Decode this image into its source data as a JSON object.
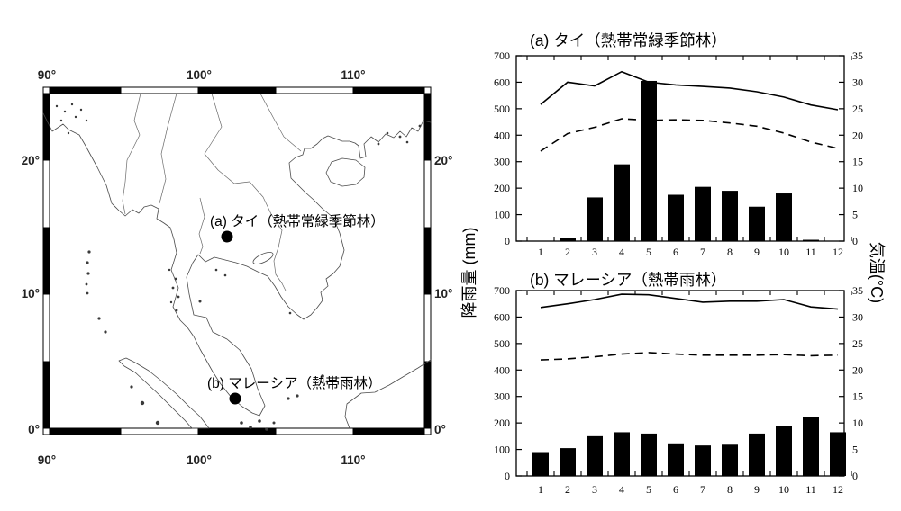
{
  "map": {
    "lon_ticks_top": [
      "90°",
      "100°",
      "110°"
    ],
    "lon_ticks_bottom": [
      "90°",
      "100°",
      "110°"
    ],
    "lat_ticks_left": [
      "20°",
      "10°",
      "0°"
    ],
    "lat_ticks_right": [
      "20°",
      "10°",
      "0°"
    ],
    "sites": [
      {
        "label": "(a) タイ（熱帯常緑季節林）"
      },
      {
        "label": "(b) マレーシア（熱帯雨林）"
      }
    ]
  },
  "axis_labels": {
    "left": "降雨量 (mm)",
    "right": "気温(°C)"
  },
  "colors": {
    "bar": "#000000",
    "line": "#000000",
    "frame": "#000000"
  },
  "chart_data": [
    {
      "type": "bar+line",
      "title": "(a) タイ（熱帯常緑季節林）",
      "x": [
        1,
        2,
        3,
        4,
        5,
        6,
        7,
        8,
        9,
        10,
        11,
        12
      ],
      "ylim_left": [
        0,
        700
      ],
      "ylim_right": [
        0,
        35
      ],
      "yticks_left": [
        0,
        100,
        200,
        300,
        400,
        500,
        600,
        700
      ],
      "yticks_right": [
        0,
        5,
        10,
        15,
        20,
        25,
        30,
        35
      ],
      "legend": "none",
      "series": [
        {
          "name": "precipitation-mm",
          "type": "bar",
          "axis": "left",
          "values": [
            0,
            12,
            165,
            290,
            605,
            175,
            205,
            190,
            130,
            180,
            5,
            0
          ]
        },
        {
          "name": "temperature-solid-line-C",
          "type": "line",
          "style": "solid",
          "axis": "right",
          "values": [
            25.8,
            30.0,
            29.3,
            32.0,
            30.0,
            29.5,
            29.2,
            28.9,
            28.2,
            27.2,
            25.7,
            24.8
          ]
        },
        {
          "name": "temperature-dashed-line-C",
          "type": "line",
          "style": "dashed",
          "axis": "right",
          "values": [
            17.0,
            20.3,
            21.5,
            23.1,
            22.8,
            22.9,
            22.8,
            22.3,
            21.7,
            20.4,
            18.7,
            17.5
          ]
        }
      ]
    },
    {
      "type": "bar+line",
      "title": "(b) マレーシア（熱帯雨林）",
      "x": [
        1,
        2,
        3,
        4,
        5,
        6,
        7,
        8,
        9,
        10,
        11,
        12
      ],
      "ylim_left": [
        0,
        700
      ],
      "ylim_right": [
        0,
        35
      ],
      "yticks_left": [
        0,
        100,
        200,
        300,
        400,
        500,
        600,
        700
      ],
      "yticks_right": [
        0,
        5,
        10,
        15,
        20,
        25,
        30,
        35
      ],
      "legend": "none",
      "series": [
        {
          "name": "precipitation-mm",
          "type": "bar",
          "axis": "left",
          "values": [
            90,
            105,
            150,
            165,
            160,
            123,
            115,
            118,
            160,
            188,
            222,
            165
          ]
        },
        {
          "name": "temperature-solid-line-C",
          "type": "line",
          "style": "solid",
          "axis": "right",
          "values": [
            31.8,
            32.5,
            33.3,
            34.3,
            34.2,
            33.5,
            32.8,
            33.0,
            33.0,
            33.3,
            31.9,
            31.5
          ]
        },
        {
          "name": "temperature-dashed-line-C",
          "type": "line",
          "style": "dashed",
          "axis": "right",
          "values": [
            21.9,
            22.1,
            22.5,
            23.0,
            23.3,
            23.0,
            22.8,
            22.8,
            22.8,
            22.9,
            22.7,
            22.8
          ]
        }
      ]
    }
  ]
}
